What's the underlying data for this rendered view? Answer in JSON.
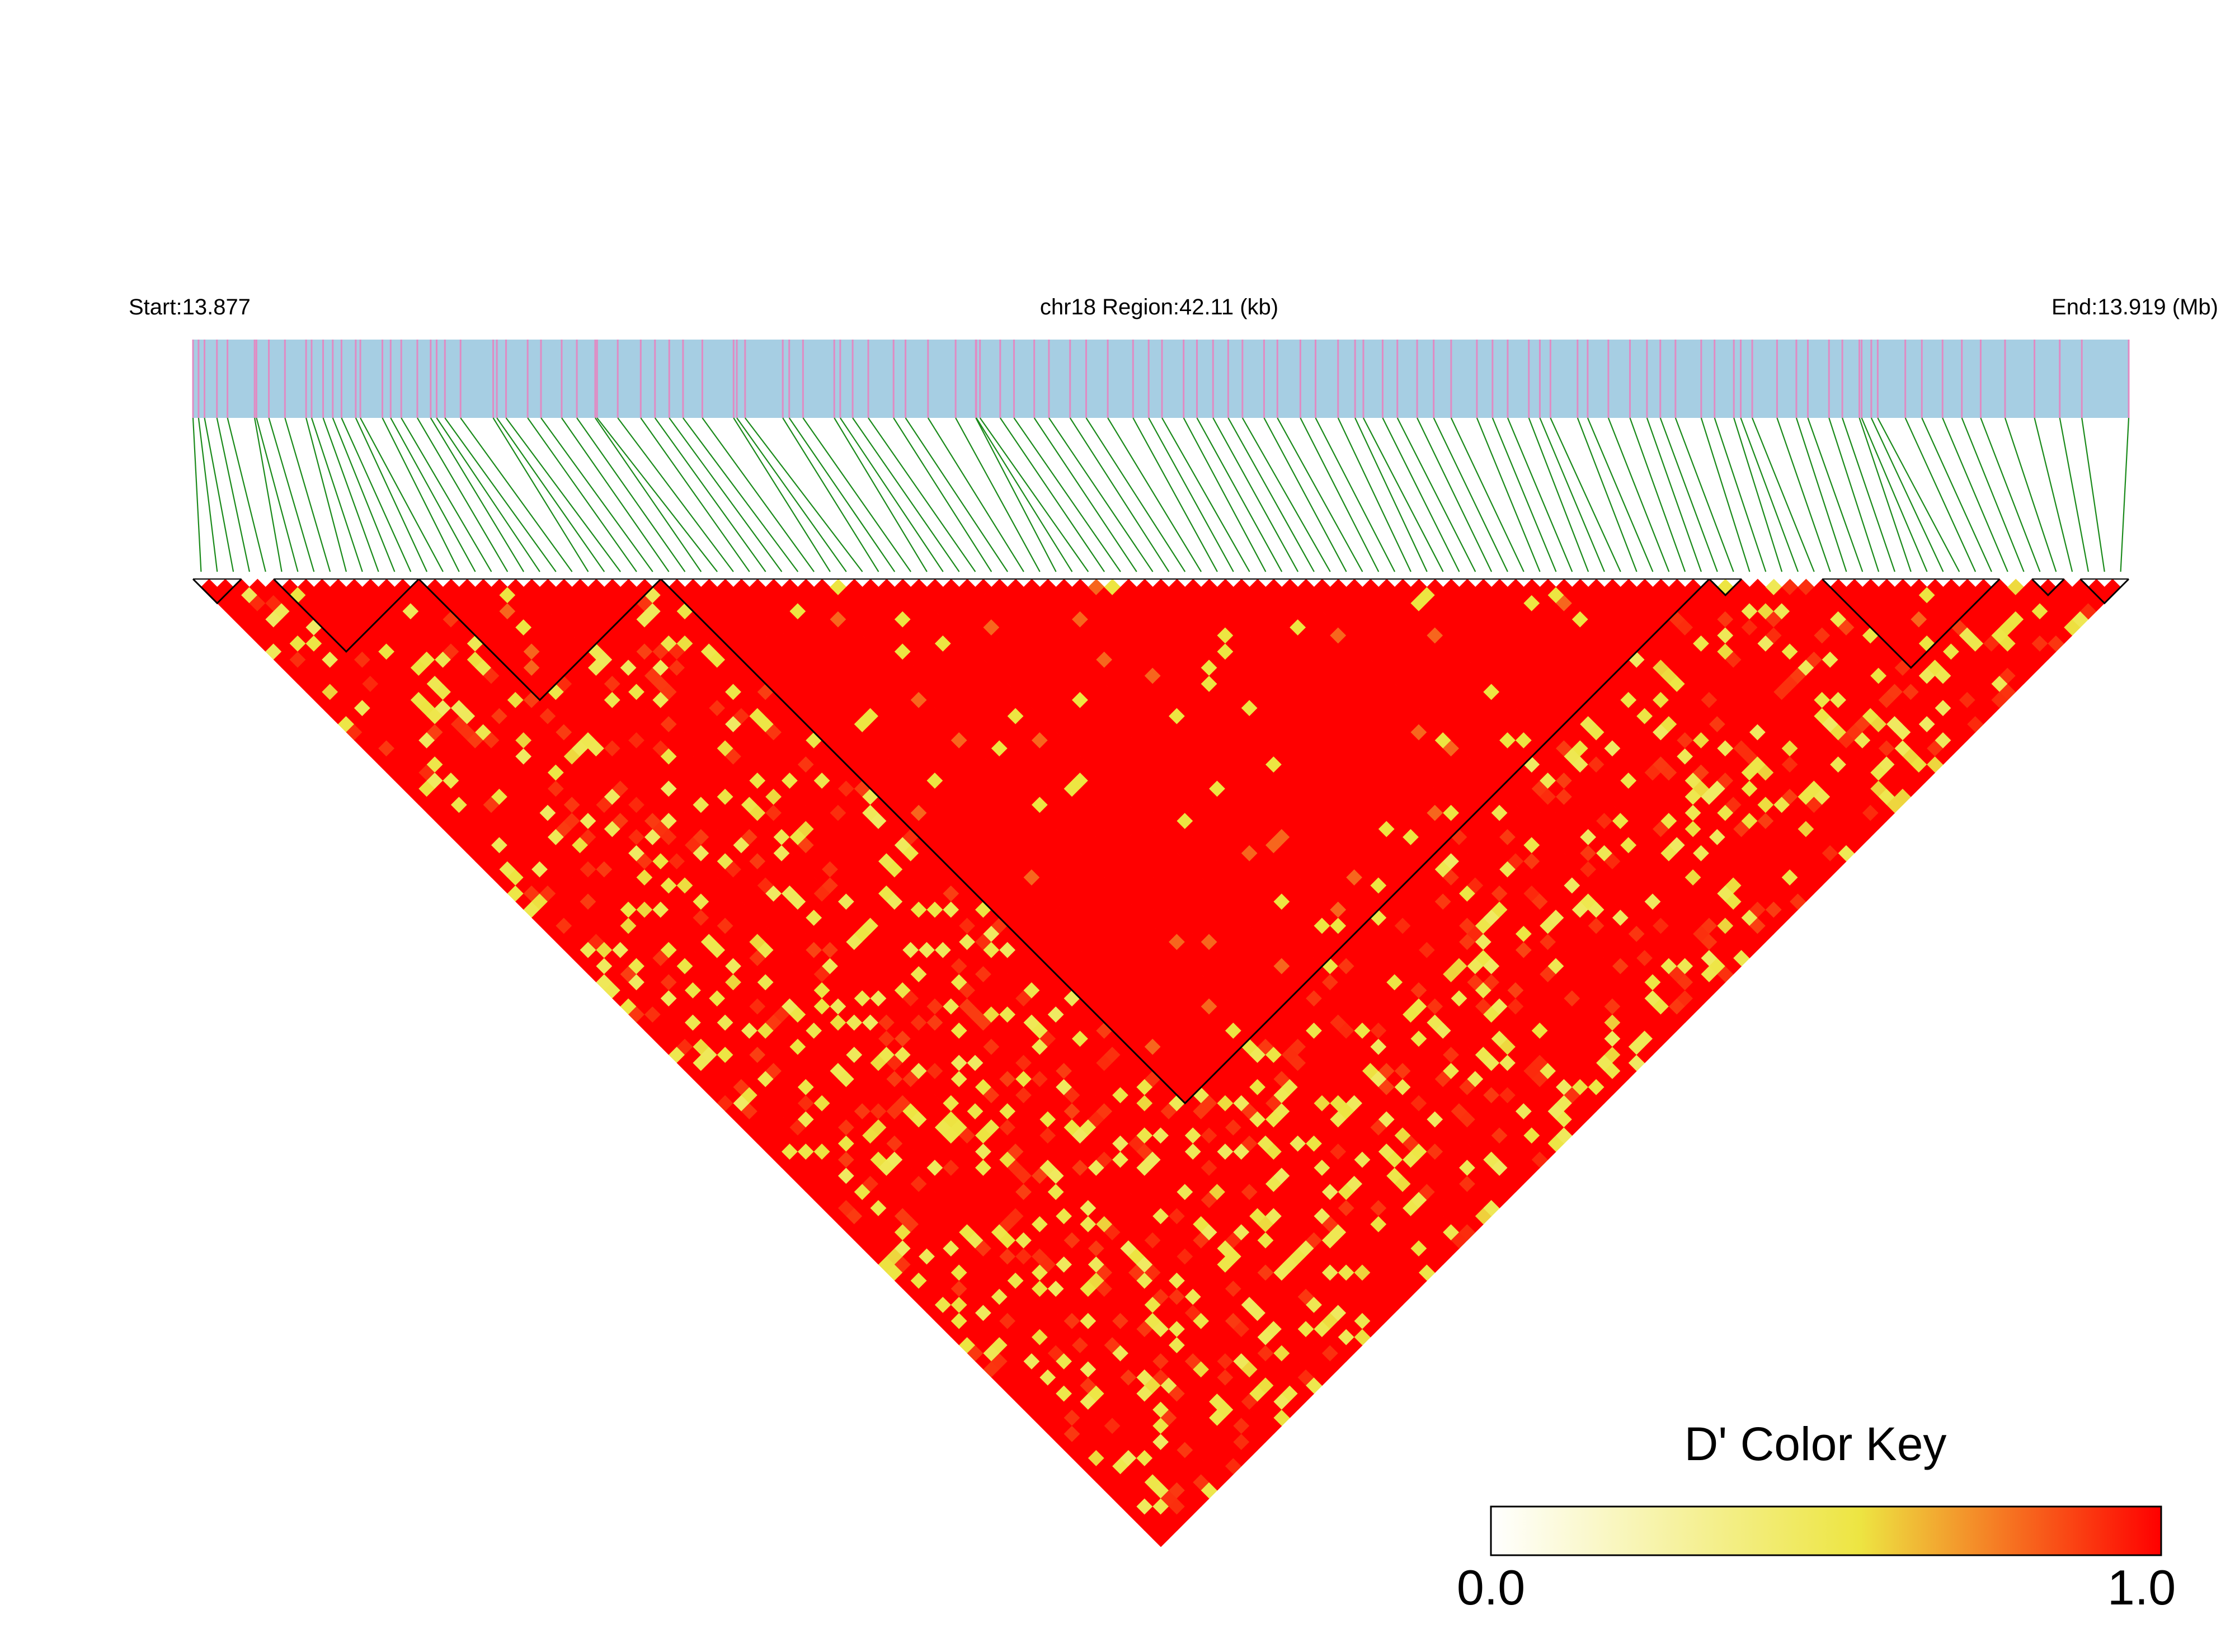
{
  "chart_data": {
    "type": "heatmap",
    "start_label": "Start:13.877",
    "region_label": "chr18 Region:42.11 (kb)",
    "end_label": "End:13.919 (Mb)",
    "start_mb": 13.877,
    "end_mb": 13.919,
    "region_kb": 42.11,
    "chromosome": "chr18",
    "snp_count": 120,
    "snp_positions_kb": [
      0.0,
      0.12,
      0.25,
      0.52,
      0.75,
      1.34,
      1.38,
      1.65,
      2.0,
      2.46,
      2.58,
      2.83,
      3.04,
      3.23,
      3.54,
      3.64,
      4.12,
      4.3,
      4.53,
      4.88,
      5.17,
      5.3,
      5.48,
      5.82,
      6.53,
      6.61,
      6.81,
      7.28,
      7.57,
      8.02,
      8.35,
      8.75,
      8.79,
      9.24,
      9.74,
      10.05,
      10.36,
      10.66,
      11.08,
      11.76,
      11.83,
      12.01,
      12.83,
      12.97,
      13.27,
      13.95,
      14.08,
      14.35,
      14.69,
      15.24,
      15.5,
      15.99,
      16.59,
      17.03,
      17.04,
      17.12,
      17.56,
      17.86,
      18.3,
      18.62,
      19.08,
      19.43,
      19.9,
      20.45,
      20.79,
      21.08,
      21.55,
      21.84,
      22.19,
      22.52,
      22.83,
      23.3,
      23.59,
      24.09,
      24.42,
      24.91,
      25.28,
      25.46,
      25.88,
      26.2,
      26.63,
      26.99,
      27.37,
      27.93,
      28.27,
      28.6,
      29.06,
      29.3,
      29.53,
      30.12,
      30.34,
      30.79,
      31.26,
      31.63,
      31.92,
      32.25,
      32.81,
      33.1,
      33.52,
      33.67,
      33.92,
      34.46,
      34.88,
      35.13,
      35.59,
      35.88,
      36.25,
      36.3,
      36.51,
      36.65,
      37.25,
      37.61,
      38.06,
      38.48,
      38.89,
      39.42,
      40.06,
      40.61,
      41.09,
      42.11
    ],
    "ld_blocks_snp_index": [
      [
        0,
        2
      ],
      [
        5,
        13
      ],
      [
        14,
        28
      ],
      [
        29,
        93
      ],
      [
        94,
        95
      ],
      [
        101,
        111
      ],
      [
        114,
        115
      ],
      [
        117,
        119
      ]
    ],
    "color_scale": {
      "metric": "D'",
      "min": 0.0,
      "max": 1.0,
      "low_color": "#FFFFFF",
      "mid_color": "#EDE542",
      "high_color": "#FF0000"
    },
    "legend": {
      "title": "D' Color Key",
      "min_label": "0.0",
      "max_label": "1.0"
    },
    "colors": {
      "gene_track": "#A6CEE3",
      "snp_tick": "#E08BC3",
      "connector": "#1A8A1A",
      "block_outline": "#000000"
    }
  }
}
